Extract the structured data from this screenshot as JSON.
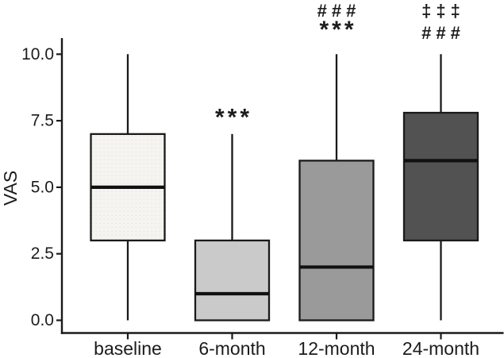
{
  "figure": {
    "background": "#ffffff"
  },
  "chart_data": {
    "type": "boxplot",
    "title": "",
    "xlabel": "",
    "ylabel": "VAS",
    "ylim": [
      0,
      10.5
    ],
    "yticks": [
      0.0,
      2.5,
      5.0,
      7.5,
      10.0
    ],
    "ytick_labels": [
      "0.0",
      "2.5",
      "5.0",
      "7.5",
      "10.0"
    ],
    "categories": [
      "baseline",
      "6-month",
      "12-month",
      "24-month"
    ],
    "grid": false,
    "legend": "none",
    "colors": {
      "axis": "#1a1a1a",
      "box_border": "#1a1a1a",
      "median": "#111111",
      "text": "#1c1c1c"
    },
    "boxes": [
      {
        "category": "baseline",
        "whisker_low": 0,
        "q1": 3,
        "median": 5,
        "q3": 7,
        "whisker_high": 10,
        "fill": "#f5f4f0",
        "texture": "fine-dots",
        "annotations": []
      },
      {
        "category": "6-month",
        "whisker_low": 0,
        "q1": 0,
        "median": 1,
        "q3": 3,
        "whisker_high": 7,
        "fill": "#cacaca",
        "texture": "none",
        "annotations": [
          "***"
        ]
      },
      {
        "category": "12-month",
        "whisker_low": 0,
        "q1": 0,
        "median": 2,
        "q3": 6,
        "whisker_high": 10,
        "fill": "#9a9a9a",
        "texture": "none",
        "annotations": [
          "###",
          "***"
        ]
      },
      {
        "category": "24-month",
        "whisker_low": 0,
        "q1": 3,
        "median": 6,
        "q3": 7.8,
        "whisker_high": 10,
        "fill": "#525252",
        "texture": "none",
        "annotations": [
          "‡‡‡",
          "###"
        ]
      }
    ]
  }
}
